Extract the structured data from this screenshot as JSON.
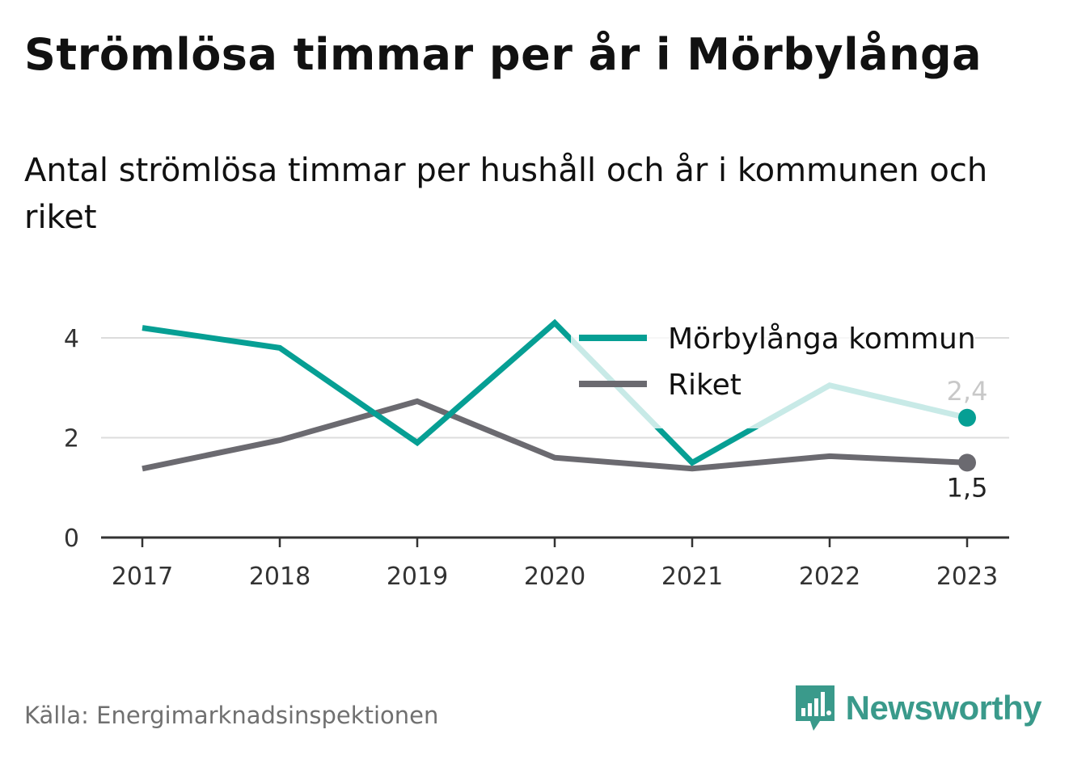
{
  "title": "Strömlösa timmar per år i Mörbylånga",
  "subtitle": "Antal strömlösa timmar per hushåll och år i kommunen och riket",
  "source": "Källa: Energimarknadsinspektionen",
  "brand": {
    "name": "Newsworthy",
    "icon": "newsworthy-logo-icon"
  },
  "colors": {
    "municipality": "#069f94",
    "national": "#6b6a70",
    "municipality_faded": "#c9ebe6",
    "grid": "#dcdcdc",
    "axis": "#333333",
    "end_label_municipality": "#c8c8c8",
    "end_label_national": "#222222"
  },
  "chart_data": {
    "type": "line",
    "x": [
      "2017",
      "2018",
      "2019",
      "2020",
      "2021",
      "2022",
      "2023"
    ],
    "yticks": [
      "0",
      "2",
      "4"
    ],
    "ylim": [
      0,
      4.6
    ],
    "grid": true,
    "legend_position": "top-right",
    "series": [
      {
        "name": "Mörbylånga kommun",
        "key": "municipality",
        "values": [
          4.2,
          3.8,
          1.9,
          4.3,
          1.5,
          3.05,
          2.4
        ],
        "end_label": "2,4"
      },
      {
        "name": "Riket",
        "key": "national",
        "values": [
          1.38,
          1.95,
          2.73,
          1.6,
          1.38,
          1.63,
          1.5
        ],
        "end_label": "1,5"
      }
    ]
  }
}
